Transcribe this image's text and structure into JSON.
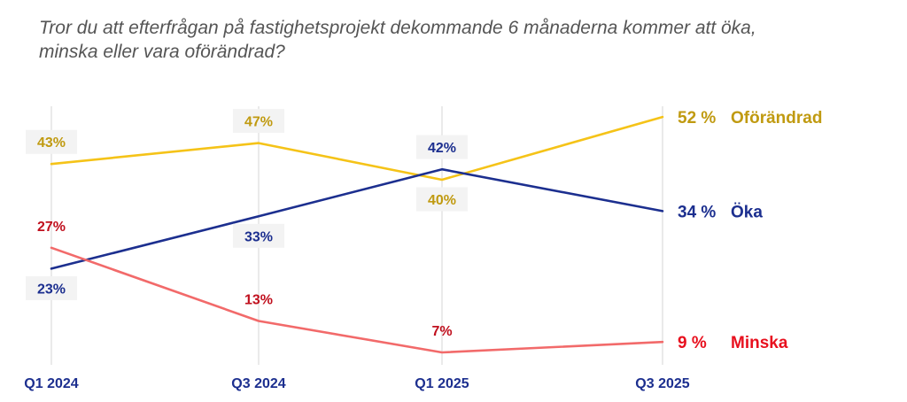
{
  "chart_data": {
    "type": "line",
    "title": "Tror du att efterfrågan på fastighetsprojekt dekommande 6 månaderna kommer att öka, minska eller vara oförändrad?",
    "categories": [
      "Q1 2024",
      "Q3 2024",
      "Q1 2025",
      "Q3 2025"
    ],
    "grid": "vertical lines at categories",
    "legend": "end-of-line labels",
    "series": [
      {
        "name": "Oförändrad",
        "values": [
          43,
          47,
          40,
          52
        ],
        "data_labels": [
          "43%",
          "47%",
          "40%"
        ],
        "end_value_label": "52 %",
        "color": "#f5c318",
        "label_color": "#c09a10"
      },
      {
        "name": "Öka",
        "values": [
          23,
          33,
          42,
          34
        ],
        "data_labels": [
          "23%",
          "33%",
          "42%"
        ],
        "end_value_label": "34 %",
        "color": "#1c2f8f",
        "label_color": "#1c2f8f"
      },
      {
        "name": "Minska",
        "values": [
          27,
          13,
          7,
          9
        ],
        "data_labels": [
          "27%",
          "13%",
          "7%"
        ],
        "end_value_label": "9 %",
        "color": "#f26a6a",
        "label_color": "#c0101e",
        "end_label_color": "#e8101e"
      }
    ]
  }
}
